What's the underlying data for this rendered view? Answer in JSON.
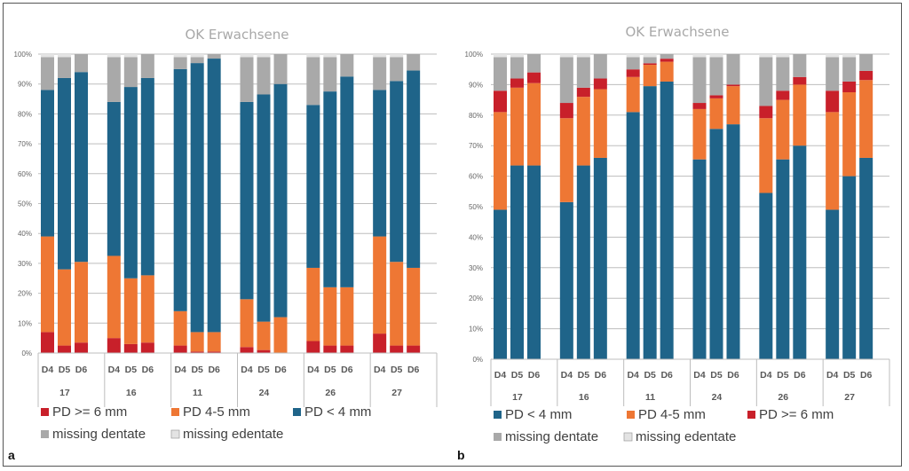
{
  "figure": {
    "panels": [
      "a",
      "b"
    ]
  },
  "colors": {
    "pd_lt4": "#1f6489",
    "pd_4_5": "#ee7734",
    "pd_ge6": "#c8202a",
    "missing_dentate": "#a9a9a9",
    "missing_edentate": "#e3e3e3"
  },
  "chart_data": [
    {
      "type": "bar",
      "stacked": true,
      "panel_label": "a",
      "title": "OK Erwachsene",
      "xlabel": "",
      "ylabel": "",
      "ylim": [
        0,
        100
      ],
      "yticks": [
        "0%",
        "10%",
        "20%",
        "30%",
        "40%",
        "50%",
        "60%",
        "70%",
        "80%",
        "90%",
        "100%"
      ],
      "grid": true,
      "groups": [
        "17",
        "16",
        "11",
        "24",
        "26",
        "27"
      ],
      "subcategories": [
        "D4",
        "D5",
        "D6"
      ],
      "stack_order": [
        "pd_ge6",
        "pd_4_5",
        "pd_lt4",
        "missing_dentate",
        "missing_edentate"
      ],
      "series": [
        {
          "key": "pd_ge6",
          "name": "PD >= 6 mm",
          "values": [
            7,
            2.5,
            3.5,
            5,
            3,
            3.5,
            2.5,
            0.5,
            0.5,
            2,
            1,
            0,
            4,
            2.5,
            2.5,
            6.5,
            2.5,
            2.5
          ]
        },
        {
          "key": "pd_4_5",
          "name": "PD 4-5 mm",
          "values": [
            32,
            25.5,
            27,
            27.5,
            22,
            22.5,
            11.5,
            6.5,
            6.5,
            16,
            9.5,
            12,
            24.5,
            19.5,
            19.5,
            32.5,
            28,
            26
          ]
        },
        {
          "key": "pd_lt4",
          "name": "PD < 4 mm",
          "values": [
            49,
            64,
            63.5,
            51.5,
            64,
            66,
            81,
            90,
            91.5,
            66,
            76,
            78,
            54.5,
            65.5,
            70.5,
            49,
            60.5,
            66
          ]
        },
        {
          "key": "missing_dentate",
          "name": "missing dentate",
          "values": [
            11,
            7,
            6,
            15,
            10,
            8,
            4,
            2,
            1.5,
            15,
            12.5,
            10,
            16,
            11.5,
            7.5,
            11,
            8,
            5.5
          ]
        },
        {
          "key": "missing_edentate",
          "name": "missing edentate",
          "values": [
            1,
            1,
            0,
            1,
            1,
            0,
            1,
            1,
            0,
            1,
            1,
            0,
            1,
            1,
            0,
            1,
            1,
            0
          ]
        }
      ],
      "legend": {
        "placement": "bottom",
        "entries": [
          "PD >= 6 mm",
          "PD 4-5 mm",
          "PD < 4 mm",
          "missing dentate",
          "missing edentate"
        ]
      }
    },
    {
      "type": "bar",
      "stacked": true,
      "panel_label": "b",
      "title": "OK Erwachsene",
      "xlabel": "",
      "ylabel": "",
      "ylim": [
        0,
        100
      ],
      "yticks": [
        "0%",
        "10%",
        "20%",
        "30%",
        "40%",
        "50%",
        "60%",
        "70%",
        "80%",
        "90%",
        "100%"
      ],
      "grid": true,
      "groups": [
        "17",
        "16",
        "11",
        "24",
        "26",
        "27"
      ],
      "subcategories": [
        "D4",
        "D5",
        "D6"
      ],
      "stack_order": [
        "pd_lt4",
        "pd_4_5",
        "pd_ge6",
        "missing_dentate",
        "missing_edentate"
      ],
      "series": [
        {
          "key": "pd_lt4",
          "name": "PD < 4 mm",
          "values": [
            49,
            63.5,
            63.5,
            51.5,
            63.5,
            66,
            81,
            89.5,
            91,
            65.5,
            75.5,
            77,
            54.5,
            65.5,
            70,
            49,
            60,
            66
          ]
        },
        {
          "key": "pd_4_5",
          "name": "PD 4-5 mm",
          "values": [
            32,
            25.5,
            27,
            27.5,
            22.5,
            22.5,
            11.5,
            7,
            6.5,
            16.5,
            10,
            12.5,
            24.5,
            19.5,
            20,
            32,
            27.5,
            25.5
          ]
        },
        {
          "key": "pd_ge6",
          "name": "PD >= 6 mm",
          "values": [
            7,
            3,
            3.5,
            5,
            3,
            3.5,
            2.5,
            0.5,
            1,
            2,
            1,
            0.5,
            4,
            3,
            2.5,
            7,
            3.5,
            3
          ]
        },
        {
          "key": "missing_dentate",
          "name": "missing dentate",
          "values": [
            11,
            7,
            6,
            15,
            10,
            8,
            4,
            2,
            1.5,
            15,
            12.5,
            10,
            16,
            11,
            7.5,
            11,
            8,
            5.5
          ]
        },
        {
          "key": "missing_edentate",
          "name": "missing edentate",
          "values": [
            1,
            1,
            0,
            1,
            1,
            0,
            1,
            1,
            0,
            1,
            1,
            0,
            1,
            1,
            0,
            1,
            1,
            0
          ]
        }
      ],
      "legend": {
        "placement": "bottom",
        "entries": [
          "PD < 4 mm",
          "PD 4-5 mm",
          "PD >= 6 mm",
          "missing dentate",
          "missing edentate"
        ]
      }
    }
  ]
}
